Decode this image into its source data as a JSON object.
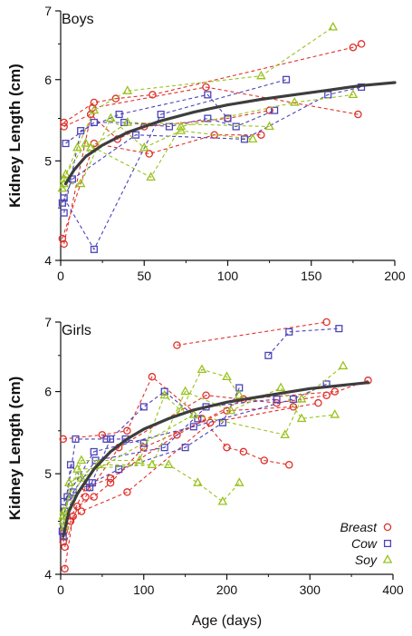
{
  "chart_data": [
    {
      "type": "scatter",
      "title": "Boys",
      "xlabel": "",
      "ylabel": "Kidney Length (cm)",
      "xlim": [
        0,
        200
      ],
      "ylim": [
        4,
        7
      ],
      "y_scale": "log",
      "xticks": [
        0,
        50,
        100,
        150,
        200
      ],
      "yticks": [
        4,
        5,
        6,
        7
      ],
      "fit_curve": [
        [
          3,
          4.75
        ],
        [
          8,
          4.9
        ],
        [
          15,
          5.05
        ],
        [
          25,
          5.18
        ],
        [
          40,
          5.33
        ],
        [
          60,
          5.47
        ],
        [
          80,
          5.58
        ],
        [
          100,
          5.67
        ],
        [
          120,
          5.74
        ],
        [
          140,
          5.8
        ],
        [
          160,
          5.86
        ],
        [
          180,
          5.92
        ],
        [
          200,
          5.96
        ]
      ],
      "series": [
        {
          "name": "Breast",
          "color": "#e0312b",
          "marker": "circle",
          "tracks": [
            [
              [
                2,
                5.45
              ],
              [
                20,
                5.7
              ],
              [
                33,
                5.75
              ],
              [
                55,
                5.8
              ],
              [
                175,
                6.45
              ],
              [
                180,
                6.5
              ]
            ],
            [
              [
                2,
                5.4
              ],
              [
                18,
                5.55
              ],
              [
                34,
                5.25
              ],
              [
                50,
                5.4
              ],
              [
                100,
                5.5
              ],
              [
                125,
                5.6
              ]
            ],
            [
              [
                1,
                4.2
              ],
              [
                20,
                5.2
              ],
              [
                53,
                5.08
              ],
              [
                92,
                5.3
              ],
              [
                120,
                5.3
              ]
            ],
            [
              [
                2,
                4.15
              ],
              [
                19,
                5.63
              ],
              [
                87,
                5.9
              ],
              [
                178,
                5.55
              ]
            ]
          ]
        },
        {
          "name": "Cow",
          "color": "#4b43b8",
          "marker": "square",
          "tracks": [
            [
              [
                2,
                4.45
              ],
              [
                12,
                5.35
              ],
              [
                35,
                5.55
              ],
              [
                88,
                5.8
              ],
              [
                100,
                5.5
              ]
            ],
            [
              [
                3,
                5.2
              ],
              [
                20,
                5.45
              ],
              [
                38,
                5.45
              ],
              [
                65,
                5.4
              ],
              [
                88,
                5.5
              ],
              [
                105,
                5.4
              ],
              [
                128,
                5.6
              ]
            ],
            [
              [
                1,
                4.55
              ],
              [
                7,
                4.8
              ],
              [
                45,
                5.3
              ],
              [
                110,
                5.25
              ],
              [
                160,
                5.8
              ],
              [
                180,
                5.9
              ]
            ],
            [
              [
                2,
                4.6
              ],
              [
                20,
                4.1
              ],
              [
                60,
                5.55
              ],
              [
                135,
                6.0
              ]
            ]
          ]
        },
        {
          "name": "Soy",
          "color": "#99c21c",
          "marker": "triangle",
          "tracks": [
            [
              [
                2,
                4.8
              ],
              [
                10,
                5.15
              ],
              [
                20,
                5.6
              ],
              [
                40,
                5.85
              ],
              [
                120,
                6.05
              ],
              [
                163,
                6.75
              ]
            ],
            [
              [
                2,
                4.75
              ],
              [
                12,
                4.75
              ],
              [
                30,
                5.5
              ],
              [
                50,
                5.15
              ],
              [
                72,
                5.35
              ],
              [
                115,
                5.25
              ]
            ],
            [
              [
                3,
                4.85
              ],
              [
                15,
                5.2
              ],
              [
                54,
                4.82
              ],
              [
                72,
                5.4
              ],
              [
                140,
                5.7
              ],
              [
                175,
                5.8
              ]
            ],
            [
              [
                1,
                4.7
              ],
              [
                18,
                5.15
              ],
              [
                40,
                5.45
              ],
              [
                125,
                5.4
              ]
            ]
          ]
        }
      ]
    },
    {
      "type": "scatter",
      "title": "Girls",
      "xlabel": "Age (days)",
      "ylabel": "Kidney Length (cm)",
      "xlim": [
        0,
        400
      ],
      "ylim": [
        4,
        7
      ],
      "y_scale": "log",
      "xticks": [
        0,
        100,
        200,
        300,
        400
      ],
      "yticks": [
        4,
        5,
        6,
        7
      ],
      "legend_position": "bottom-right",
      "fit_curve": [
        [
          3,
          4.35
        ],
        [
          10,
          4.6
        ],
        [
          20,
          4.78
        ],
        [
          40,
          5.05
        ],
        [
          60,
          5.25
        ],
        [
          80,
          5.4
        ],
        [
          100,
          5.52
        ],
        [
          130,
          5.65
        ],
        [
          160,
          5.76
        ],
        [
          200,
          5.86
        ],
        [
          250,
          5.95
        ],
        [
          300,
          6.04
        ],
        [
          370,
          6.12
        ]
      ],
      "series": [
        {
          "name": "Breast",
          "color": "#e0312b",
          "marker": "circle",
          "tracks": [
            [
              [
                3,
                5.4
              ],
              [
                50,
                5.45
              ],
              [
                80,
                5.5
              ],
              [
                110,
                6.2
              ],
              [
                170,
                5.65
              ],
              [
                200,
                5.3
              ],
              [
                220,
                5.25
              ],
              [
                245,
                5.15
              ],
              [
                275,
                5.1
              ]
            ],
            [
              [
                5,
                4.05
              ],
              [
                15,
                4.55
              ],
              [
                30,
                4.75
              ],
              [
                70,
                5.3
              ],
              [
                175,
                5.95
              ],
              [
                260,
                5.85
              ],
              [
                320,
                5.95
              ],
              [
                370,
                6.15
              ]
            ],
            [
              [
                5,
                4.25
              ],
              [
                20,
                4.65
              ],
              [
                40,
                4.75
              ],
              [
                60,
                4.9
              ],
              [
                100,
                5.3
              ],
              [
                200,
                5.75
              ],
              [
                280,
                5.8
              ]
            ],
            [
              [
                3,
                4.3
              ],
              [
                12,
                4.5
              ],
              [
                25,
                4.6
              ],
              [
                80,
                4.8
              ],
              [
                180,
                5.6
              ],
              [
                310,
                5.85
              ]
            ],
            [
              [
                4,
                4.4
              ],
              [
                30,
                4.85
              ],
              [
                60,
                4.95
              ],
              [
                140,
                5.45
              ],
              [
                220,
                5.9
              ],
              [
                330,
                6.0
              ]
            ],
            [
              [
                140,
                6.65
              ],
              [
                320,
                7.0
              ]
            ]
          ]
        },
        {
          "name": "Cow",
          "color": "#4b43b8",
          "marker": "square",
          "tracks": [
            [
              [
                2,
                4.4
              ],
              [
                12,
                5.1
              ],
              [
                35,
                4.85
              ],
              [
                60,
                5.4
              ],
              [
                100,
                5.8
              ],
              [
                125,
                6.0
              ],
              [
                165,
                5.65
              ]
            ],
            [
              [
                5,
                4.6
              ],
              [
                18,
                5.4
              ],
              [
                55,
                5.4
              ],
              [
                78,
                5.4
              ],
              [
                100,
                5.35
              ]
            ],
            [
              [
                8,
                4.75
              ],
              [
                38,
                4.9
              ],
              [
                70,
                5.05
              ],
              [
                150,
                5.3
              ],
              [
                195,
                5.6
              ],
              [
                215,
                6.05
              ]
            ],
            [
              [
                3,
                4.35
              ],
              [
                15,
                4.8
              ],
              [
                42,
                5.15
              ],
              [
                125,
                5.3
              ],
              [
                175,
                5.8
              ],
              [
                260,
                5.9
              ]
            ],
            [
              [
                4,
                4.7
              ],
              [
                40,
                5.25
              ],
              [
                160,
                5.55
              ],
              [
                280,
                5.9
              ],
              [
                320,
                6.1
              ]
            ],
            [
              [
                250,
                6.5
              ],
              [
                275,
                6.85
              ],
              [
                335,
                6.9
              ]
            ]
          ]
        },
        {
          "name": "Soy",
          "color": "#99c21c",
          "marker": "triangle",
          "tracks": [
            [
              [
                3,
                4.55
              ],
              [
                25,
                5.15
              ],
              [
                95,
                5.15
              ],
              [
                125,
                5.95
              ],
              [
                145,
                5.75
              ],
              [
                170,
                6.3
              ],
              [
                200,
                6.2
              ],
              [
                215,
                5.95
              ]
            ],
            [
              [
                5,
                4.45
              ],
              [
                10,
                4.9
              ],
              [
                45,
                5.1
              ],
              [
                130,
                5.1
              ],
              [
                165,
                4.9
              ],
              [
                195,
                4.7
              ],
              [
                215,
                4.9
              ]
            ],
            [
              [
                4,
                4.6
              ],
              [
                20,
                5.05
              ],
              [
                110,
                5.1
              ],
              [
                150,
                6.0
              ],
              [
                205,
                5.75
              ],
              [
                265,
                6.05
              ],
              [
                290,
                5.65
              ],
              [
                330,
                5.7
              ]
            ],
            [
              [
                3,
                4.5
              ],
              [
                25,
                4.95
              ],
              [
                160,
                5.7
              ],
              [
                270,
                5.45
              ],
              [
                290,
                5.9
              ],
              [
                340,
                6.35
              ]
            ]
          ]
        }
      ]
    }
  ]
}
